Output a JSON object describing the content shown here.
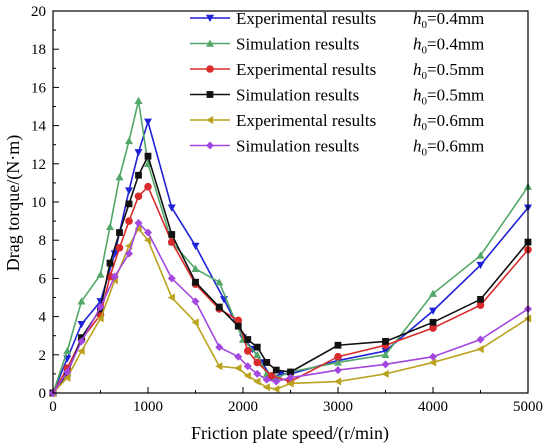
{
  "chart_data": {
    "type": "line",
    "xlabel": "Friction plate speed/(r/min)",
    "ylabel": "Drag torque/(N·m)",
    "xlim": [
      0,
      5000
    ],
    "ylim": [
      0,
      20
    ],
    "xticks": [
      "0",
      "1000",
      "2000",
      "3000",
      "4000",
      "5000"
    ],
    "yticks": [
      "0",
      "2",
      "4",
      "6",
      "8",
      "10",
      "12",
      "14",
      "16",
      "18",
      "20"
    ],
    "grid": false,
    "legend_position": "top-right",
    "series": [
      {
        "name": "Experimental results",
        "h_label": "h",
        "h_sub": "0",
        "h_value": "=0.4mm",
        "color": "#1f22d6",
        "marker": "triangle-down",
        "x": [
          0,
          150,
          300,
          500,
          650,
          800,
          900,
          1000,
          1250,
          1500,
          1800,
          2000,
          2100,
          2200,
          2300,
          2400,
          2500,
          3000,
          3500,
          4000,
          4500,
          5000
        ],
        "y": [
          0,
          1.8,
          3.6,
          4.8,
          7.3,
          10.6,
          12.6,
          14.2,
          9.7,
          7.7,
          4.9,
          2.9,
          2.3,
          1.6,
          0.8,
          1.0,
          1.0,
          1.7,
          2.2,
          4.3,
          6.7,
          9.7
        ]
      },
      {
        "name": "Simulation results",
        "h_label": "h",
        "h_sub": "0",
        "h_value": "=0.4mm",
        "color": "#52a868",
        "marker": "triangle-up",
        "x": [
          0,
          150,
          300,
          500,
          600,
          700,
          800,
          900,
          1000,
          1250,
          1500,
          1750,
          2000,
          2150,
          2250,
          2350,
          2500,
          3000,
          3500,
          4000,
          4500,
          5000
        ],
        "y": [
          0,
          2.2,
          4.8,
          6.2,
          8.7,
          11.3,
          13.2,
          15.3,
          12.0,
          7.9,
          6.5,
          5.8,
          2.8,
          2.0,
          1.0,
          0.8,
          1.1,
          1.6,
          2.0,
          5.2,
          7.2,
          10.8
        ]
      },
      {
        "name": "Experimental results",
        "h_label": "h",
        "h_sub": "0",
        "h_value": "=0.5mm",
        "color": "#d92b2b",
        "marker": "circle",
        "x": [
          0,
          150,
          300,
          500,
          600,
          700,
          800,
          900,
          1000,
          1250,
          1500,
          1750,
          1950,
          2050,
          2150,
          2300,
          2500,
          3000,
          3500,
          4000,
          4500,
          5000
        ],
        "y": [
          0,
          1.3,
          2.8,
          4.1,
          6.1,
          7.6,
          9.0,
          10.3,
          10.8,
          7.9,
          5.7,
          4.4,
          3.8,
          2.2,
          1.6,
          0.9,
          0.6,
          1.9,
          2.5,
          3.4,
          4.6,
          7.5
        ]
      },
      {
        "name": "Simulation results",
        "h_label": "h",
        "h_sub": "0",
        "h_value": "=0.5mm",
        "color": "#111111",
        "marker": "square",
        "x": [
          0,
          150,
          300,
          500,
          600,
          700,
          800,
          900,
          1000,
          1250,
          1500,
          1750,
          1950,
          2050,
          2150,
          2250,
          2350,
          2500,
          3000,
          3500,
          4000,
          4500,
          5000
        ],
        "y": [
          0,
          1.0,
          2.9,
          4.4,
          6.8,
          8.4,
          9.9,
          11.4,
          12.4,
          8.3,
          5.8,
          4.5,
          3.5,
          2.8,
          2.4,
          1.6,
          1.2,
          1.1,
          2.5,
          2.7,
          3.7,
          4.9,
          7.9
        ]
      },
      {
        "name": "Experimental results",
        "h_label": "h",
        "h_sub": "0",
        "h_value": "=0.6mm",
        "color": "#bba21f",
        "marker": "triangle-left",
        "x": [
          0,
          150,
          300,
          500,
          650,
          800,
          900,
          1000,
          1250,
          1500,
          1750,
          1950,
          2050,
          2150,
          2250,
          2350,
          2500,
          3000,
          3500,
          4000,
          4500,
          5000
        ],
        "y": [
          0,
          0.8,
          2.2,
          3.9,
          5.9,
          7.7,
          8.6,
          8.0,
          5.0,
          3.7,
          1.4,
          1.3,
          0.9,
          0.6,
          0.3,
          0.2,
          0.5,
          0.6,
          1.0,
          1.6,
          2.3,
          3.9
        ]
      },
      {
        "name": "Simulation results",
        "h_label": "h",
        "h_sub": "0",
        "h_value": "=0.6mm",
        "color": "#a347e0",
        "marker": "diamond",
        "x": [
          0,
          150,
          300,
          500,
          650,
          800,
          900,
          1000,
          1250,
          1500,
          1750,
          1950,
          2050,
          2150,
          2250,
          2350,
          2500,
          3000,
          3500,
          4000,
          4500,
          5000
        ],
        "y": [
          0,
          1.1,
          2.7,
          4.5,
          6.1,
          7.3,
          8.9,
          8.4,
          6.0,
          4.8,
          2.4,
          1.9,
          1.4,
          1.0,
          0.7,
          0.6,
          0.8,
          1.2,
          1.5,
          1.9,
          2.8,
          4.4
        ]
      }
    ]
  }
}
